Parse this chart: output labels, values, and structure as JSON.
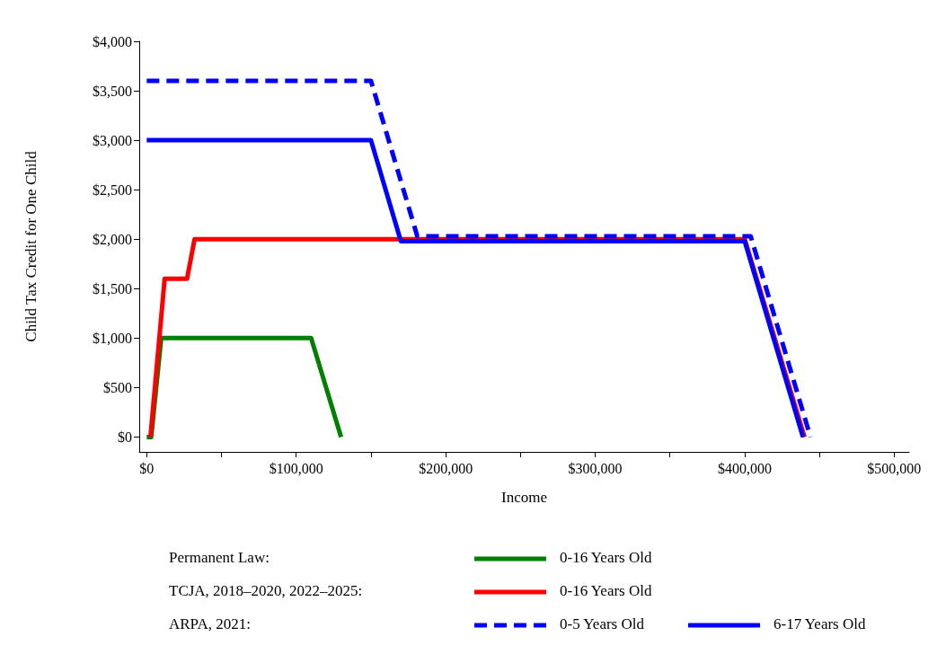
{
  "chart_data": {
    "type": "line",
    "xlabel": "Income",
    "ylabel": "Child Tax Credit for One Child",
    "annotations": [
      "Permanent Law:",
      "TCJA, 2018–2020, 2022–2025:",
      "ARPA, 2021:"
    ],
    "series": [
      {
        "name": "0-16 Years Old",
        "color": "#008000",
        "x": [
          0,
          3000,
          9700,
          110000,
          130000
        ],
        "values": [
          0,
          0,
          1000,
          1000,
          0
        ]
      },
      {
        "name": "0-16 Years Old",
        "color": "#ff0000",
        "x": [
          2500,
          12000,
          27000,
          32000,
          400000,
          440000
        ],
        "values": [
          0,
          1600,
          1600,
          2000,
          2000,
          0
        ]
      },
      {
        "name": "0-5 Years Old",
        "color": "#0000ff",
        "line_style": "dashed",
        "x": [
          0,
          150000,
          181000,
          404000,
          444000
        ],
        "values": [
          3600,
          3600,
          2030,
          2030,
          0
        ]
      },
      {
        "name": "6-17 Years Old",
        "color": "#0000ff",
        "x": [
          0,
          150000,
          170000,
          400000,
          439000
        ],
        "values": [
          3000,
          3000,
          1980,
          1980,
          0
        ]
      }
    ],
    "xlim": [
      -5000,
      510000
    ],
    "xticks": [
      {
        "value": 0,
        "label": "$0"
      },
      {
        "value": 50000,
        "label": null
      },
      {
        "value": 100000,
        "label": "$100,000"
      },
      {
        "value": 150000,
        "label": null
      },
      {
        "value": 200000,
        "label": "$200,000"
      },
      {
        "value": 250000,
        "label": null
      },
      {
        "value": 300000,
        "label": "$300,000"
      },
      {
        "value": 350000,
        "label": null
      },
      {
        "value": 400000,
        "label": "$400,000"
      },
      {
        "value": 450000,
        "label": null
      },
      {
        "value": 500000,
        "label": "$500,000"
      }
    ],
    "ylim": [
      -150,
      4000
    ],
    "yticks": [
      {
        "value": 0,
        "label": "$0"
      },
      {
        "value": 500,
        "label": "$500"
      },
      {
        "value": 1000,
        "label": "$1,000"
      },
      {
        "value": 1500,
        "label": "$1,500"
      },
      {
        "value": 2000,
        "label": "$2,000"
      },
      {
        "value": 2500,
        "label": "$2,500"
      },
      {
        "value": 3000,
        "label": "$3,000"
      },
      {
        "value": 3500,
        "label": "$3,500"
      },
      {
        "value": 4000,
        "label": "$4,000"
      }
    ],
    "grid": false,
    "legend": "bottom",
    "marker": "none",
    "line_style": "solid"
  }
}
